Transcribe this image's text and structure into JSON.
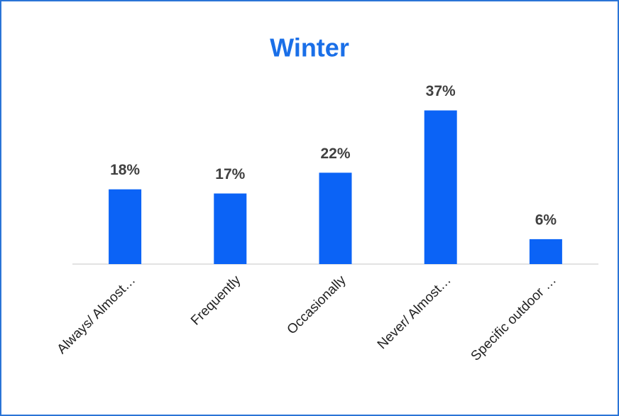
{
  "chart_data": {
    "type": "bar",
    "title": "Winter",
    "categories": [
      "Always/ Almost…",
      "Frequently",
      "Occasionally",
      "Never/ Almost…",
      "Specific outdoor …"
    ],
    "values": [
      18,
      17,
      22,
      37,
      6
    ],
    "value_labels": [
      "18%",
      "17%",
      "22%",
      "37%",
      "6%"
    ],
    "color": "#0b63f6"
  }
}
